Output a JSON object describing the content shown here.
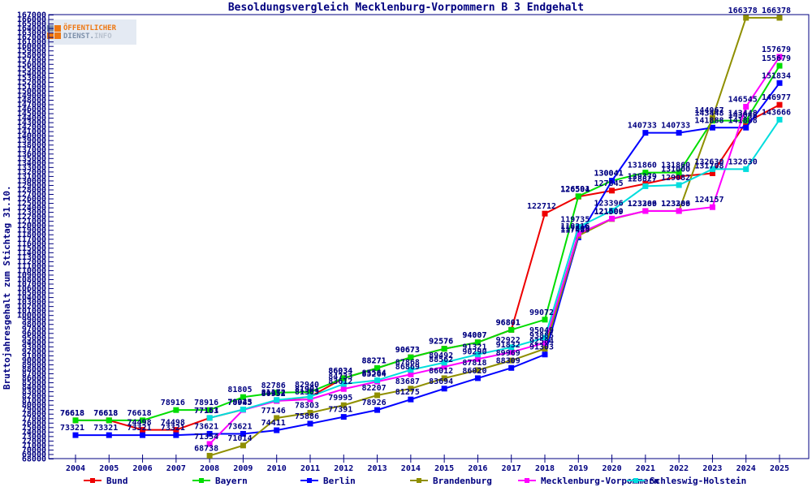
{
  "title": "Besoldungsvergleich Mecklenburg-Vorpommern B 3 Endgehalt",
  "logo": {
    "line1": "ÖFFENTLICHER",
    "line2_part1": "DIENST.",
    "line2_part2": "INFO"
  },
  "y_axis": {
    "label": "Bruttojahresgehalt zum Stichtag 31.10.",
    "min": 68000,
    "max": 167000,
    "tick_step": 1000
  },
  "colors": {
    "axis_text": "#000080",
    "background": "#ffffff"
  },
  "chart_data": {
    "type": "line",
    "title": "Besoldungsvergleich Mecklenburg-Vorpommern B 3 Endgehalt",
    "xlabel": "",
    "ylabel": "Bruttojahresgehalt zum Stichtag 31.10.",
    "ylim": [
      68000,
      167000
    ],
    "grid": false,
    "legend_position": "bottom",
    "x": [
      2004,
      2005,
      2006,
      2007,
      2008,
      2009,
      2010,
      2011,
      2012,
      2013,
      2014,
      2015,
      2016,
      2017,
      2018,
      2019,
      2020,
      2021,
      2022,
      2023,
      2024,
      2025
    ],
    "series": [
      {
        "name": "Bund",
        "color": "#ee0000",
        "values": [
          76618,
          76618,
          74498,
          74498,
          77151,
          79023,
          80952,
          81901,
          86034,
          88271,
          90673,
          92576,
          94007,
          96801,
          122712,
          126504,
          127845,
          129379,
          131000,
          131708,
          143048,
          146977
        ]
      },
      {
        "name": "Bayern",
        "color": "#00dd00",
        "values": [
          76618,
          76618,
          76618,
          78916,
          78916,
          81805,
          82786,
          82940,
          86034,
          88271,
          90673,
          92576,
          94007,
          96801,
          99072,
          126591,
          130041,
          131860,
          131860,
          143448,
          143448,
          155679
        ]
      },
      {
        "name": "Berlin",
        "color": "#0000ff",
        "values": [
          73321,
          73321,
          73321,
          73321,
          73621,
          73621,
          74411,
          75886,
          77391,
          78926,
          81275,
          83694,
          86020,
          88309,
          91303,
          117409,
          130041,
          140733,
          140733,
          141888,
          141888,
          151834
        ]
      },
      {
        "name": "Brandenburg",
        "color": "#8f8f00",
        "values": [
          null,
          null,
          null,
          null,
          68738,
          71014,
          77146,
          78303,
          79995,
          82207,
          83687,
          86012,
          87818,
          89969,
          92584,
          117809,
          121509,
          123306,
          123306,
          144067,
          166378,
          166378
        ]
      },
      {
        "name": "Mecklenburg-Vorpommern",
        "color": "#ff00ff",
        "values": [
          null,
          null,
          null,
          null,
          71354,
          78945,
          80952,
          81303,
          83612,
          85264,
          86869,
          88562,
          90290,
          91832,
          93885,
          118216,
          121600,
          123289,
          123289,
          124157,
          146545,
          157679
        ]
      },
      {
        "name": "Schleswig-Holstein",
        "color": "#00dddd",
        "values": [
          null,
          null,
          null,
          null,
          77163,
          79045,
          81172,
          81901,
          84733,
          85564,
          87868,
          89492,
          91321,
          92922,
          95049,
          119735,
          123396,
          128827,
          129082,
          132630,
          132630,
          143666
        ]
      }
    ]
  },
  "legend_x_positions": [
    103,
    237,
    370,
    505,
    638,
    772
  ]
}
